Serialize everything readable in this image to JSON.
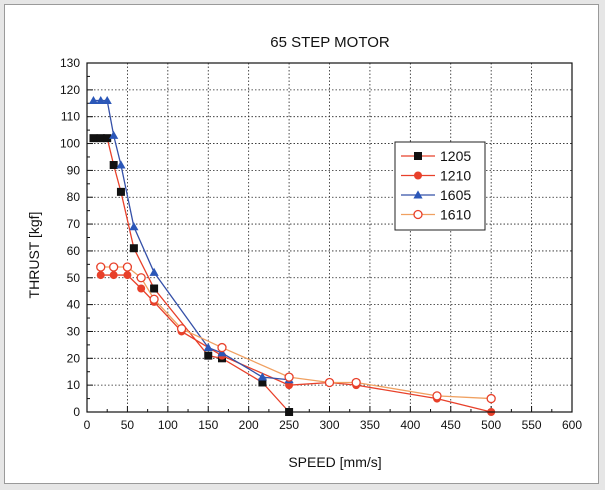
{
  "chart_data": {
    "type": "line",
    "title": "65 STEP MOTOR",
    "xlabel": "SPEED [mm/s]",
    "ylabel": "THRUST [kgf]",
    "xlim": [
      0,
      600
    ],
    "ylim": [
      0,
      130
    ],
    "xticks": [
      0,
      50,
      100,
      150,
      200,
      250,
      300,
      350,
      400,
      450,
      500,
      550,
      600
    ],
    "yticks": [
      0,
      10,
      20,
      30,
      40,
      50,
      60,
      70,
      80,
      90,
      100,
      110,
      120,
      130
    ],
    "grid": "dotted",
    "legend_position": "right",
    "series": [
      {
        "name": "1205",
        "color": "#e8402a",
        "marker": "square-filled",
        "marker_color": "#111111",
        "points": [
          [
            8,
            102
          ],
          [
            17,
            102
          ],
          [
            25,
            102
          ],
          [
            33,
            92
          ],
          [
            42,
            82
          ],
          [
            58,
            61
          ],
          [
            83,
            46
          ],
          [
            150,
            21
          ],
          [
            167,
            20
          ],
          [
            217,
            11
          ],
          [
            250,
            0
          ]
        ]
      },
      {
        "name": "1210",
        "color": "#e8402a",
        "marker": "circle-filled",
        "marker_color": "#e8402a",
        "points": [
          [
            17,
            51
          ],
          [
            33,
            51
          ],
          [
            50,
            51
          ],
          [
            67,
            46
          ],
          [
            83,
            41
          ],
          [
            117,
            30
          ],
          [
            167,
            21
          ],
          [
            250,
            10
          ],
          [
            300,
            11
          ],
          [
            333,
            10
          ],
          [
            433,
            5
          ],
          [
            500,
            0
          ]
        ]
      },
      {
        "name": "1605",
        "color": "#3550a8",
        "marker": "triangle-filled",
        "marker_color": "#2b57b8",
        "points": [
          [
            8,
            116
          ],
          [
            17,
            116
          ],
          [
            25,
            116
          ],
          [
            33,
            103
          ],
          [
            42,
            92
          ],
          [
            58,
            69
          ],
          [
            83,
            52
          ],
          [
            150,
            24
          ],
          [
            167,
            22
          ],
          [
            217,
            13
          ],
          [
            250,
            12
          ]
        ]
      },
      {
        "name": "1610",
        "color": "#f0a060",
        "marker": "circle-open",
        "marker_color": "#e8402a",
        "points": [
          [
            17,
            54
          ],
          [
            33,
            54
          ],
          [
            50,
            54
          ],
          [
            67,
            50
          ],
          [
            83,
            42
          ],
          [
            117,
            31
          ],
          [
            167,
            24
          ],
          [
            250,
            13
          ],
          [
            300,
            11
          ],
          [
            333,
            11
          ],
          [
            433,
            6
          ],
          [
            500,
            5
          ]
        ]
      }
    ]
  }
}
